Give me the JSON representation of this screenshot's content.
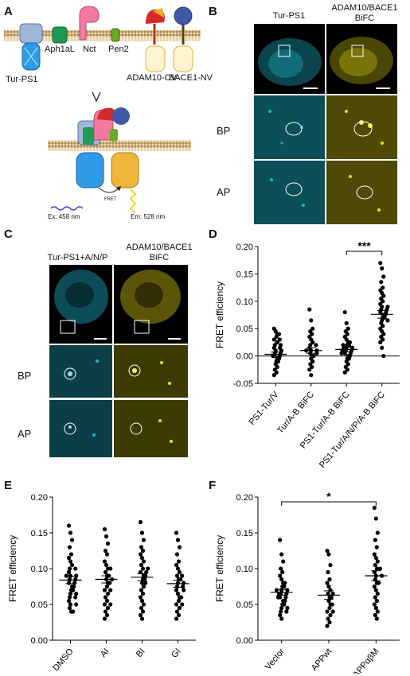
{
  "panels": {
    "A": {
      "letter": "A",
      "proteins": [
        "Tur-PS1",
        "Aph1aL",
        "Nct",
        "Pen2",
        "ADAM10-CV",
        "BACE1-NV"
      ],
      "fret_label": "FRET",
      "ex_label": "Ex: 458 nm",
      "em_label": "Em: 528 nm"
    },
    "B": {
      "letter": "B",
      "col1": "Tur-PS1",
      "col2_line1": "ADAM10/BACE1",
      "col2_line2": "BiFC",
      "row1": "BP",
      "row2": "AP"
    },
    "C": {
      "letter": "C",
      "col1": "Tur-PS1+A/N/P",
      "col2_line1": "ADAM10/BACE1",
      "col2_line2": "BiFC",
      "row1": "BP",
      "row2": "AP"
    },
    "D": {
      "letter": "D",
      "significance": "***"
    },
    "E": {
      "letter": "E"
    },
    "F": {
      "letter": "F",
      "significance": "*"
    }
  },
  "colors": {
    "cyan": "#19b7c8",
    "yellow": "#e8e015",
    "tur_blue": "#2e9be6",
    "ylw_barrel": "#f0b63a"
  },
  "chart_data": [
    {
      "id": "D",
      "type": "scatter",
      "ylabel": "FRET efficiency",
      "ylim": [
        -0.05,
        0.2
      ],
      "yticks": [
        "-0.05",
        "0.00",
        "0.05",
        "0.10",
        "0.15",
        "0.20"
      ],
      "ytick_values": [
        -0.05,
        0,
        0.05,
        0.1,
        0.15,
        0.2
      ],
      "categories": [
        "PS1-Tur/V",
        "Tur/A-B BiFC",
        "PS1-Tur/A-B BiFC",
        "PS1-Tur/A/N/P/A-B BiFC"
      ],
      "means": [
        0.003,
        0.01,
        0.012,
        0.076
      ],
      "sems": [
        0.004,
        0.005,
        0.004,
        0.007
      ],
      "values": [
        [
          0.05,
          0.045,
          0.04,
          0.04,
          0.035,
          0.03,
          0.03,
          0.025,
          0.02,
          0.02,
          0.015,
          0.01,
          0.01,
          0.005,
          0.005,
          0,
          0,
          -0.005,
          -0.005,
          -0.01,
          -0.01,
          -0.015,
          -0.02,
          -0.025,
          -0.03,
          -0.035,
          0.015,
          0.0
        ],
        [
          0.085,
          0.065,
          0.05,
          0.045,
          0.04,
          0.035,
          0.03,
          0.025,
          0.02,
          0.02,
          0.015,
          0.01,
          0.01,
          0.005,
          0,
          0,
          -0.005,
          -0.01,
          -0.015,
          -0.02,
          -0.025,
          -0.035,
          0.005,
          0.01
        ],
        [
          0.08,
          0.06,
          0.05,
          0.045,
          0.04,
          0.035,
          0.03,
          0.025,
          0.025,
          0.02,
          0.02,
          0.015,
          0.015,
          0.01,
          0.01,
          0.005,
          0.005,
          0,
          0,
          -0.005,
          -0.005,
          -0.01,
          -0.015,
          -0.02,
          -0.025,
          -0.03,
          0.01,
          0.015,
          0.005,
          0.02
        ],
        [
          0.17,
          0.16,
          0.145,
          0.135,
          0.125,
          0.12,
          0.115,
          0.11,
          0.105,
          0.1,
          0.095,
          0.09,
          0.09,
          0.085,
          0.085,
          0.08,
          0.08,
          0.075,
          0.075,
          0.07,
          0.07,
          0.065,
          0.065,
          0.06,
          0.055,
          0.05,
          0.045,
          0.04,
          0.035,
          0.03,
          0.025,
          0.015,
          0.0
        ]
      ],
      "significance": [
        {
          "from": 2,
          "to": 3,
          "label": "***"
        }
      ]
    },
    {
      "id": "E",
      "type": "scatter",
      "ylabel": "FRET efficiency",
      "ylim": [
        0,
        0.2
      ],
      "yticks": [
        "0.00",
        "0.05",
        "0.10",
        "0.15",
        "0.20"
      ],
      "ytick_values": [
        0,
        0.05,
        0.1,
        0.15,
        0.2
      ],
      "categories": [
        "DMSO",
        "AI",
        "BI",
        "GI"
      ],
      "means": [
        0.084,
        0.085,
        0.088,
        0.079
      ],
      "sems": [
        0.005,
        0.005,
        0.005,
        0.005
      ],
      "values": [
        [
          0.16,
          0.15,
          0.14,
          0.13,
          0.12,
          0.115,
          0.11,
          0.105,
          0.1,
          0.1,
          0.095,
          0.09,
          0.09,
          0.085,
          0.085,
          0.08,
          0.08,
          0.075,
          0.075,
          0.07,
          0.07,
          0.065,
          0.065,
          0.06,
          0.06,
          0.055,
          0.05,
          0.05,
          0.045,
          0.04,
          0.04,
          0.09
        ],
        [
          0.155,
          0.145,
          0.135,
          0.125,
          0.12,
          0.11,
          0.105,
          0.1,
          0.095,
          0.09,
          0.09,
          0.085,
          0.08,
          0.08,
          0.075,
          0.07,
          0.07,
          0.065,
          0.06,
          0.055,
          0.05,
          0.05,
          0.045,
          0.04,
          0.035,
          0.03,
          0.1,
          0.085
        ],
        [
          0.165,
          0.15,
          0.14,
          0.13,
          0.125,
          0.12,
          0.115,
          0.11,
          0.105,
          0.1,
          0.095,
          0.095,
          0.09,
          0.09,
          0.085,
          0.085,
          0.08,
          0.075,
          0.07,
          0.065,
          0.06,
          0.055,
          0.05,
          0.045,
          0.04,
          0.035,
          0.03,
          0.1,
          0.08
        ],
        [
          0.15,
          0.14,
          0.13,
          0.12,
          0.11,
          0.105,
          0.1,
          0.095,
          0.09,
          0.085,
          0.085,
          0.08,
          0.08,
          0.075,
          0.075,
          0.07,
          0.065,
          0.06,
          0.06,
          0.055,
          0.05,
          0.05,
          0.045,
          0.04,
          0.035,
          0.03,
          0.09,
          0.07
        ]
      ]
    },
    {
      "id": "F",
      "type": "scatter",
      "ylabel": "FRET efficiency",
      "ylim": [
        0,
        0.2
      ],
      "yticks": [
        "0.00",
        "0.05",
        "0.10",
        "0.15",
        "0.20"
      ],
      "ytick_values": [
        0,
        0.05,
        0.1,
        0.15,
        0.2
      ],
      "categories": [
        "Vector",
        "APPwt",
        "APPαβM"
      ],
      "means": [
        0.067,
        0.063,
        0.09
      ],
      "sems": [
        0.004,
        0.006,
        0.007
      ],
      "values": [
        [
          0.14,
          0.12,
          0.11,
          0.1,
          0.095,
          0.09,
          0.085,
          0.08,
          0.08,
          0.075,
          0.075,
          0.07,
          0.07,
          0.065,
          0.065,
          0.06,
          0.06,
          0.055,
          0.055,
          0.05,
          0.05,
          0.045,
          0.045,
          0.04,
          0.04,
          0.035,
          0.03,
          0.065,
          0.07,
          0.06
        ],
        [
          0.125,
          0.12,
          0.105,
          0.095,
          0.085,
          0.08,
          0.075,
          0.07,
          0.065,
          0.06,
          0.06,
          0.055,
          0.05,
          0.05,
          0.045,
          0.04,
          0.04,
          0.035,
          0.03,
          0.025,
          0.02,
          0.065
        ],
        [
          0.185,
          0.17,
          0.15,
          0.14,
          0.13,
          0.12,
          0.115,
          0.11,
          0.105,
          0.1,
          0.095,
          0.09,
          0.09,
          0.085,
          0.08,
          0.075,
          0.07,
          0.065,
          0.06,
          0.055,
          0.05,
          0.045,
          0.04,
          0.035,
          0.03,
          0.08,
          0.1
        ]
      ],
      "significance": [
        {
          "from": 0,
          "to": 2,
          "label": "*"
        }
      ]
    }
  ]
}
